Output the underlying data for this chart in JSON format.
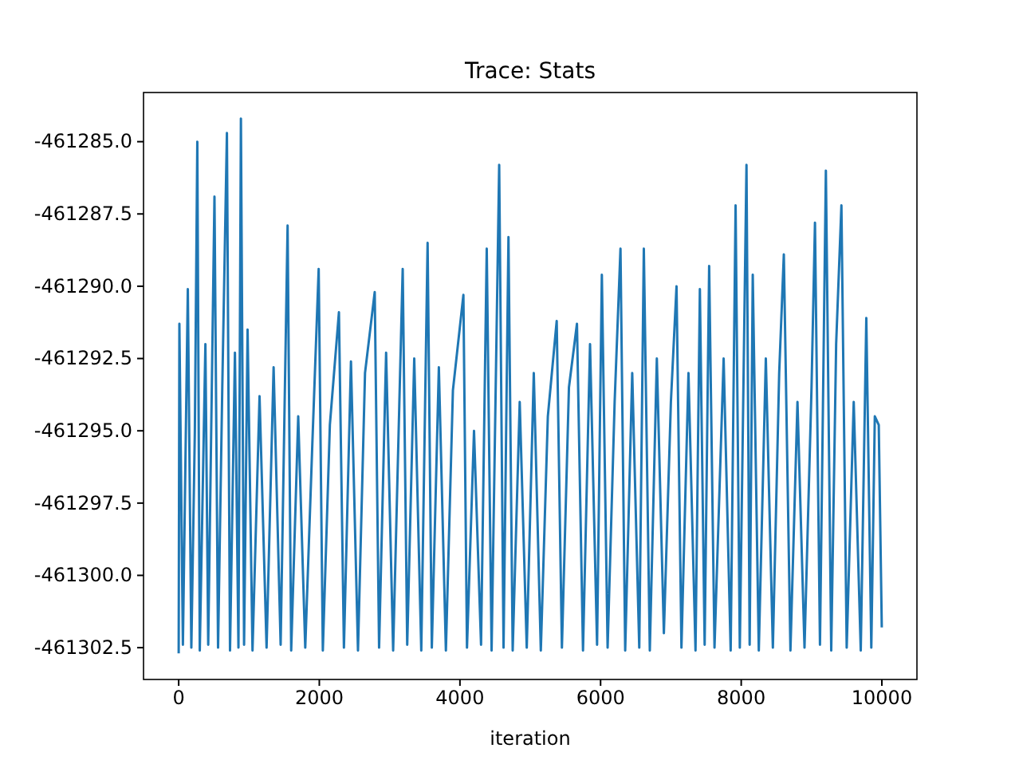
{
  "chart_data": {
    "type": "line",
    "title": "Trace: Stats",
    "xlabel": "iteration",
    "x": [
      0,
      10,
      60,
      130,
      180,
      230,
      265,
      300,
      380,
      420,
      509,
      560,
      620,
      686,
      730,
      800,
      850,
      885,
      930,
      980,
      1050,
      1150,
      1250,
      1350,
      1450,
      1549,
      1600,
      1700,
      1800,
      1900,
      1991,
      2050,
      2150,
      2279,
      2350,
      2450,
      2550,
      2650,
      2788,
      2850,
      2950,
      3050,
      3186,
      3250,
      3350,
      3450,
      3540,
      3600,
      3700,
      3800,
      3900,
      4049,
      4100,
      4200,
      4300,
      4381,
      4450,
      4558,
      4620,
      4690,
      4750,
      4850,
      4950,
      5050,
      5150,
      5250,
      5376,
      5450,
      5550,
      5664,
      5750,
      5850,
      5950,
      6018,
      6100,
      6200,
      6283,
      6350,
      6450,
      6550,
      6615,
      6700,
      6800,
      6900,
      7000,
      7080,
      7150,
      7250,
      7350,
      7412,
      7480,
      7544,
      7620,
      7750,
      7850,
      7920,
      7980,
      8075,
      8120,
      8164,
      8250,
      8350,
      8450,
      8540,
      8606,
      8700,
      8800,
      8900,
      9000,
      9049,
      9120,
      9204,
      9280,
      9350,
      9425,
      9500,
      9600,
      9700,
      9779,
      9850,
      9900,
      9956,
      9999
    ],
    "series": [
      {
        "color": "#1f77b4",
        "values": [
          -461302.7,
          -461291.3,
          -461302.4,
          -461290.1,
          -461302.5,
          -461295.0,
          -461285.0,
          -461302.6,
          -461292.0,
          -461302.4,
          -461286.9,
          -461302.5,
          -461293.5,
          -461284.7,
          -461302.6,
          -461292.3,
          -461302.5,
          -461284.2,
          -461302.4,
          -461291.5,
          -461302.6,
          -461293.8,
          -461302.5,
          -461292.8,
          -461302.4,
          -461287.9,
          -461302.6,
          -461294.5,
          -461302.5,
          -461295.5,
          -461289.4,
          -461302.6,
          -461294.8,
          -461290.9,
          -461302.5,
          -461292.6,
          -461302.6,
          -461293.0,
          -461290.2,
          -461302.5,
          -461292.3,
          -461302.6,
          -461289.4,
          -461302.4,
          -461292.5,
          -461302.6,
          -461288.5,
          -461302.5,
          -461292.8,
          -461302.6,
          -461293.6,
          -461290.3,
          -461302.5,
          -461295.0,
          -461302.4,
          -461288.7,
          -461302.6,
          -461285.8,
          -461302.5,
          -461288.3,
          -461302.6,
          -461294.0,
          -461302.5,
          -461293.0,
          -461302.6,
          -461294.5,
          -461291.2,
          -461302.5,
          -461293.5,
          -461291.3,
          -461302.6,
          -461292.0,
          -461302.4,
          -461289.6,
          -461302.5,
          -461294.0,
          -461288.7,
          -461302.6,
          -461293.0,
          -461302.5,
          -461288.7,
          -461302.6,
          -461292.5,
          -461302.0,
          -461294.0,
          -461290.0,
          -461302.5,
          -461293.0,
          -461302.6,
          -461290.1,
          -461302.4,
          -461289.3,
          -461302.5,
          -461292.5,
          -461302.6,
          -461287.2,
          -461302.5,
          -461285.8,
          -461302.4,
          -461289.6,
          -461302.6,
          -461292.5,
          -461302.5,
          -461293.0,
          -461288.9,
          -461302.6,
          -461294.0,
          -461302.5,
          -461293.5,
          -461287.8,
          -461302.4,
          -461286.0,
          -461302.6,
          -461292.0,
          -461287.2,
          -461302.5,
          -461294.0,
          -461302.6,
          -461291.1,
          -461302.5,
          -461294.5,
          -461294.8,
          -461301.8
        ]
      }
    ],
    "xlim": [
      -500,
      10499
    ],
    "xticks": [
      0,
      2000,
      4000,
      6000,
      8000,
      10000
    ],
    "ylim": [
      -461303.6,
      -461283.3
    ],
    "yticks": [
      {
        "value": -461285,
        "label": "-461285.0"
      },
      {
        "value": -461287.5,
        "label": "-461287.5"
      },
      {
        "value": -461290,
        "label": "-461290.0"
      },
      {
        "value": -461292.5,
        "label": "-461292.5"
      },
      {
        "value": -461295,
        "label": "-461295.0"
      },
      {
        "value": -461297.5,
        "label": "-461297.5"
      },
      {
        "value": -461300,
        "label": "-461300.0"
      },
      {
        "value": -461302.5,
        "label": "-461302.5"
      }
    ]
  }
}
